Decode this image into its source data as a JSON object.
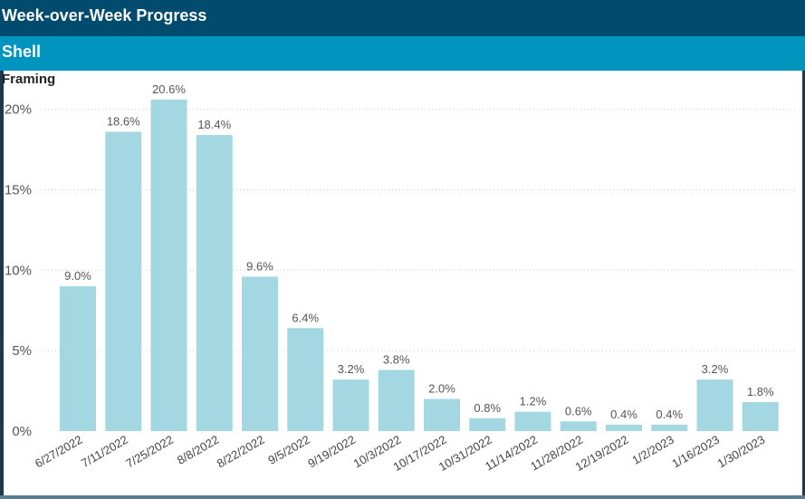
{
  "header": {
    "title": "Week-over-Week Progress"
  },
  "subheader": {
    "title": "Shell"
  },
  "chart_data": {
    "type": "bar",
    "title": "Framing",
    "categories": [
      "6/27/2022",
      "7/11/2022",
      "7/25/2022",
      "8/8/2022",
      "8/22/2022",
      "9/5/2022",
      "9/19/2022",
      "10/3/2022",
      "10/17/2022",
      "10/31/2022",
      "11/14/2022",
      "11/28/2022",
      "12/19/2022",
      "1/2/2023",
      "1/16/2023",
      "1/30/2023"
    ],
    "values": [
      9.0,
      18.6,
      20.6,
      18.4,
      9.6,
      6.4,
      3.2,
      3.8,
      2.0,
      0.8,
      1.2,
      0.6,
      0.4,
      0.4,
      3.2,
      1.8
    ],
    "value_labels": [
      "9.0%",
      "18.6%",
      "20.6%",
      "18.4%",
      "9.6%",
      "6.4%",
      "3.2%",
      "3.8%",
      "2.0%",
      "0.8%",
      "1.2%",
      "0.6%",
      "0.4%",
      "0.4%",
      "3.2%",
      "1.8%"
    ],
    "yticks": [
      0,
      5,
      10,
      15,
      20
    ],
    "ytick_labels": [
      "0%",
      "5%",
      "10%",
      "15%",
      "20%"
    ],
    "ylim": [
      0,
      20.6
    ],
    "xlabel": "",
    "ylabel": "",
    "grid": true,
    "bar_color": "#a3d8e3"
  }
}
